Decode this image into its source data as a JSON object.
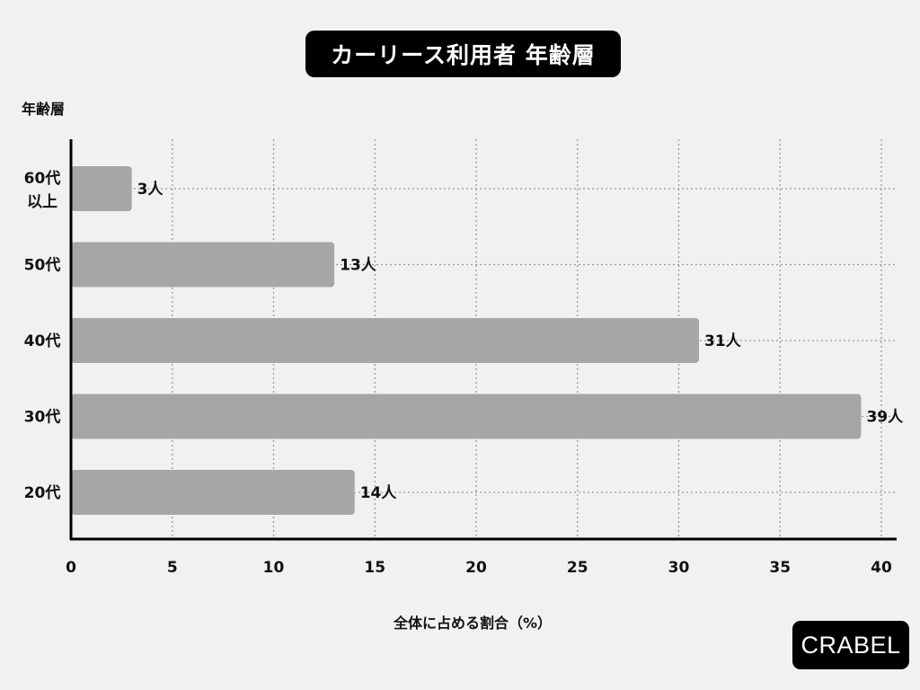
{
  "title": "カーリース利用者 年齢層",
  "logo": "CRABEL",
  "chart_data": {
    "type": "bar",
    "orientation": "horizontal",
    "title": "カーリース利用者 年齢層",
    "ylabel": "年齢層",
    "xlabel": "全体に占める割合（%）",
    "categories": [
      [
        "60代",
        "以上"
      ],
      [
        "50代"
      ],
      [
        "40代"
      ],
      [
        "30代"
      ],
      [
        "20代"
      ]
    ],
    "values": [
      3,
      13,
      31,
      39,
      14
    ],
    "data_labels": [
      "3人",
      "13人",
      "31人",
      "39人",
      "14人"
    ],
    "xlim": [
      0,
      40
    ],
    "xticks": [
      0,
      5,
      10,
      15,
      20,
      25,
      30,
      35,
      40
    ],
    "grid": true,
    "bar_color": "#a6a6a6"
  }
}
